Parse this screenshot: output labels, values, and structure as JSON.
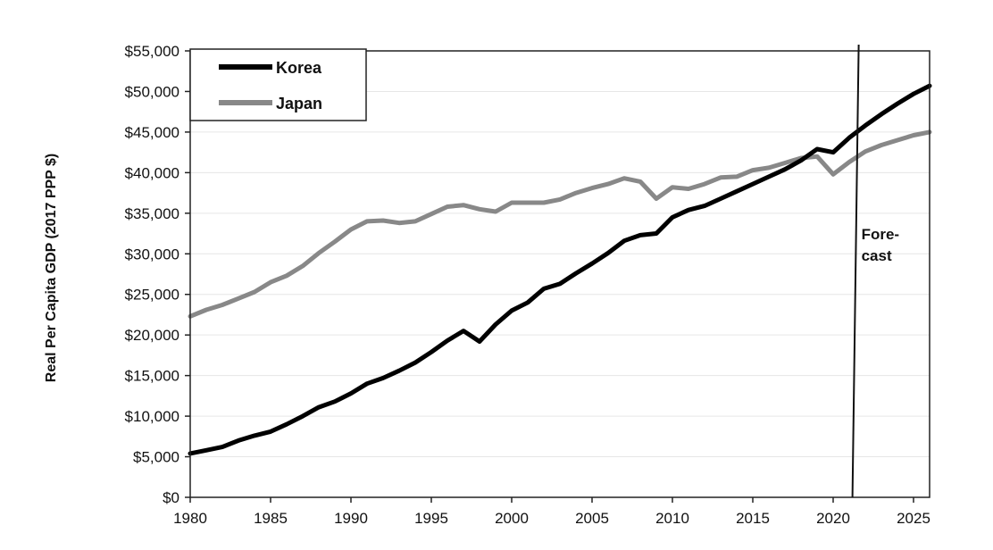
{
  "chart_data": {
    "type": "line",
    "ylabel": "Real Per Capita GDP (2017 PPP $)",
    "xlabel": "",
    "x": [
      1980,
      1981,
      1982,
      1983,
      1984,
      1985,
      1986,
      1987,
      1988,
      1989,
      1990,
      1991,
      1992,
      1993,
      1994,
      1995,
      1996,
      1997,
      1998,
      1999,
      2000,
      2001,
      2002,
      2003,
      2004,
      2005,
      2006,
      2007,
      2008,
      2009,
      2010,
      2011,
      2012,
      2013,
      2014,
      2015,
      2016,
      2017,
      2018,
      2019,
      2020,
      2021,
      2022,
      2023,
      2024,
      2025,
      2026
    ],
    "series": [
      {
        "name": "Korea",
        "color": "#000000",
        "values": [
          5400,
          5800,
          6200,
          7000,
          7600,
          8100,
          9000,
          10000,
          11100,
          11800,
          12800,
          14000,
          14700,
          15600,
          16600,
          17900,
          19300,
          20500,
          19200,
          21300,
          23000,
          24000,
          25700,
          26300,
          27600,
          28800,
          30100,
          31600,
          32300,
          32500,
          34500,
          35400,
          35900,
          36800,
          37700,
          38600,
          39500,
          40400,
          41500,
          42900,
          42500,
          44300,
          45800,
          47200,
          48500,
          49700,
          50700
        ]
      },
      {
        "name": "Japan",
        "color": "#888888",
        "values": [
          22300,
          23100,
          23700,
          24500,
          25300,
          26500,
          27300,
          28500,
          30100,
          31500,
          33000,
          34000,
          34100,
          33800,
          34000,
          34900,
          35800,
          36000,
          35500,
          35200,
          36300,
          36300,
          36300,
          36700,
          37500,
          38100,
          38600,
          39300,
          38900,
          36800,
          38200,
          38000,
          38600,
          39400,
          39500,
          40300,
          40600,
          41200,
          41800,
          42000,
          39800,
          41300,
          42600,
          43400,
          44000,
          44600,
          45000
        ]
      }
    ],
    "ylim": [
      0,
      55000
    ],
    "xlim": [
      1980,
      2026
    ],
    "y_ticks": [
      "$0",
      "$5,000",
      "$10,000",
      "$15,000",
      "$20,000",
      "$25,000",
      "$30,000",
      "$35,000",
      "$40,000",
      "$45,000",
      "$50,000",
      "$55,000"
    ],
    "y_tick_values": [
      0,
      5000,
      10000,
      15000,
      20000,
      25000,
      30000,
      35000,
      40000,
      45000,
      50000,
      55000
    ],
    "x_ticks": [
      "1980",
      "1985",
      "1990",
      "1995",
      "2000",
      "2005",
      "2010",
      "2015",
      "2020",
      "2025"
    ],
    "x_tick_values": [
      1980,
      1985,
      1990,
      1995,
      2000,
      2005,
      2010,
      2015,
      2020,
      2025
    ],
    "legend": {
      "position": "top-left",
      "entries": [
        "Korea",
        "Japan"
      ]
    },
    "forecast_marker": {
      "x": 2021.2,
      "label_line1": "Fore-",
      "label_line2": "cast"
    },
    "grid": true
  }
}
